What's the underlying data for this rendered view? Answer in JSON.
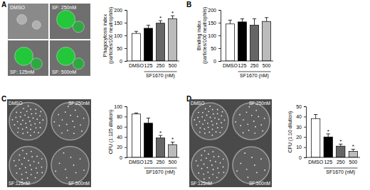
{
  "chart_data": [
    {
      "type": "bar",
      "panel": "A",
      "ylabel": [
        "Phagocytosis index",
        "(particles/100 neutrophils)"
      ],
      "xlabel": "SF1670 (nM)",
      "categories": [
        "DMSO",
        "125",
        "250",
        "500"
      ],
      "values": [
        108,
        128,
        148,
        165
      ],
      "errors": [
        8,
        12,
        10,
        12
      ],
      "colors": [
        "#ffffff",
        "#000000",
        "#666666",
        "#bbbbbb"
      ],
      "ylim": [
        0,
        200
      ],
      "yticks": [
        0,
        50,
        100,
        150,
        200
      ],
      "annotations": [
        {
          "text": "*",
          "index": 2
        },
        {
          "text": "*",
          "index": 3
        }
      ],
      "image_labels": [
        "DMSO",
        "SF: 250nM",
        "SF: 125nM",
        "SF: 500nM"
      ]
    },
    {
      "type": "bar",
      "panel": "B",
      "ylabel": [
        "Binding index",
        "(particles/100 neutrophils)"
      ],
      "xlabel": "SF1670 (nM)",
      "categories": [
        "DMSO",
        "125",
        "250",
        "500"
      ],
      "values": [
        145,
        153,
        140,
        155
      ],
      "errors": [
        15,
        12,
        25,
        15
      ],
      "colors": [
        "#ffffff",
        "#000000",
        "#666666",
        "#bbbbbb"
      ],
      "ylim": [
        0,
        200
      ],
      "yticks": [
        0,
        50,
        100,
        150,
        200
      ]
    },
    {
      "type": "bar",
      "panel": "C",
      "ylabel": [
        "CFU (1:125 dilution)"
      ],
      "xlabel": "SF1670 (nM)",
      "categories": [
        "DMSO",
        "125",
        "250",
        "500"
      ],
      "values": [
        85,
        67,
        38,
        25
      ],
      "errors": [
        2,
        10,
        5,
        5
      ],
      "colors": [
        "#ffffff",
        "#000000",
        "#666666",
        "#bbbbbb"
      ],
      "ylim": [
        0,
        100
      ],
      "yticks": [
        0,
        20,
        40,
        60,
        80,
        100
      ],
      "annotations": [
        {
          "text": "*",
          "index": 2
        },
        {
          "text": "*",
          "index": 3
        }
      ],
      "image_labels": [
        "DMSO",
        "SF:250nM",
        "SF:125nM",
        "SF:500nM"
      ]
    },
    {
      "type": "bar",
      "panel": "D",
      "ylabel": [
        "CFU (1:10 dilution)"
      ],
      "xlabel": "SF1670 (nM)",
      "categories": [
        "DMSO",
        "125",
        "250",
        "500"
      ],
      "values": [
        38,
        20,
        11,
        6
      ],
      "errors": [
        4,
        3,
        2,
        2
      ],
      "colors": [
        "#ffffff",
        "#000000",
        "#666666",
        "#bbbbbb"
      ],
      "ylim": [
        0,
        50
      ],
      "yticks": [
        0,
        10,
        20,
        30,
        40,
        50
      ],
      "annotations": [
        {
          "text": "*",
          "index": 1
        },
        {
          "text": "*",
          "index": 2
        },
        {
          "text": "*",
          "index": 3
        }
      ],
      "image_labels": [
        "DMSO",
        "SF:250nM",
        "SF:125nM",
        "SF:500nM"
      ]
    }
  ]
}
